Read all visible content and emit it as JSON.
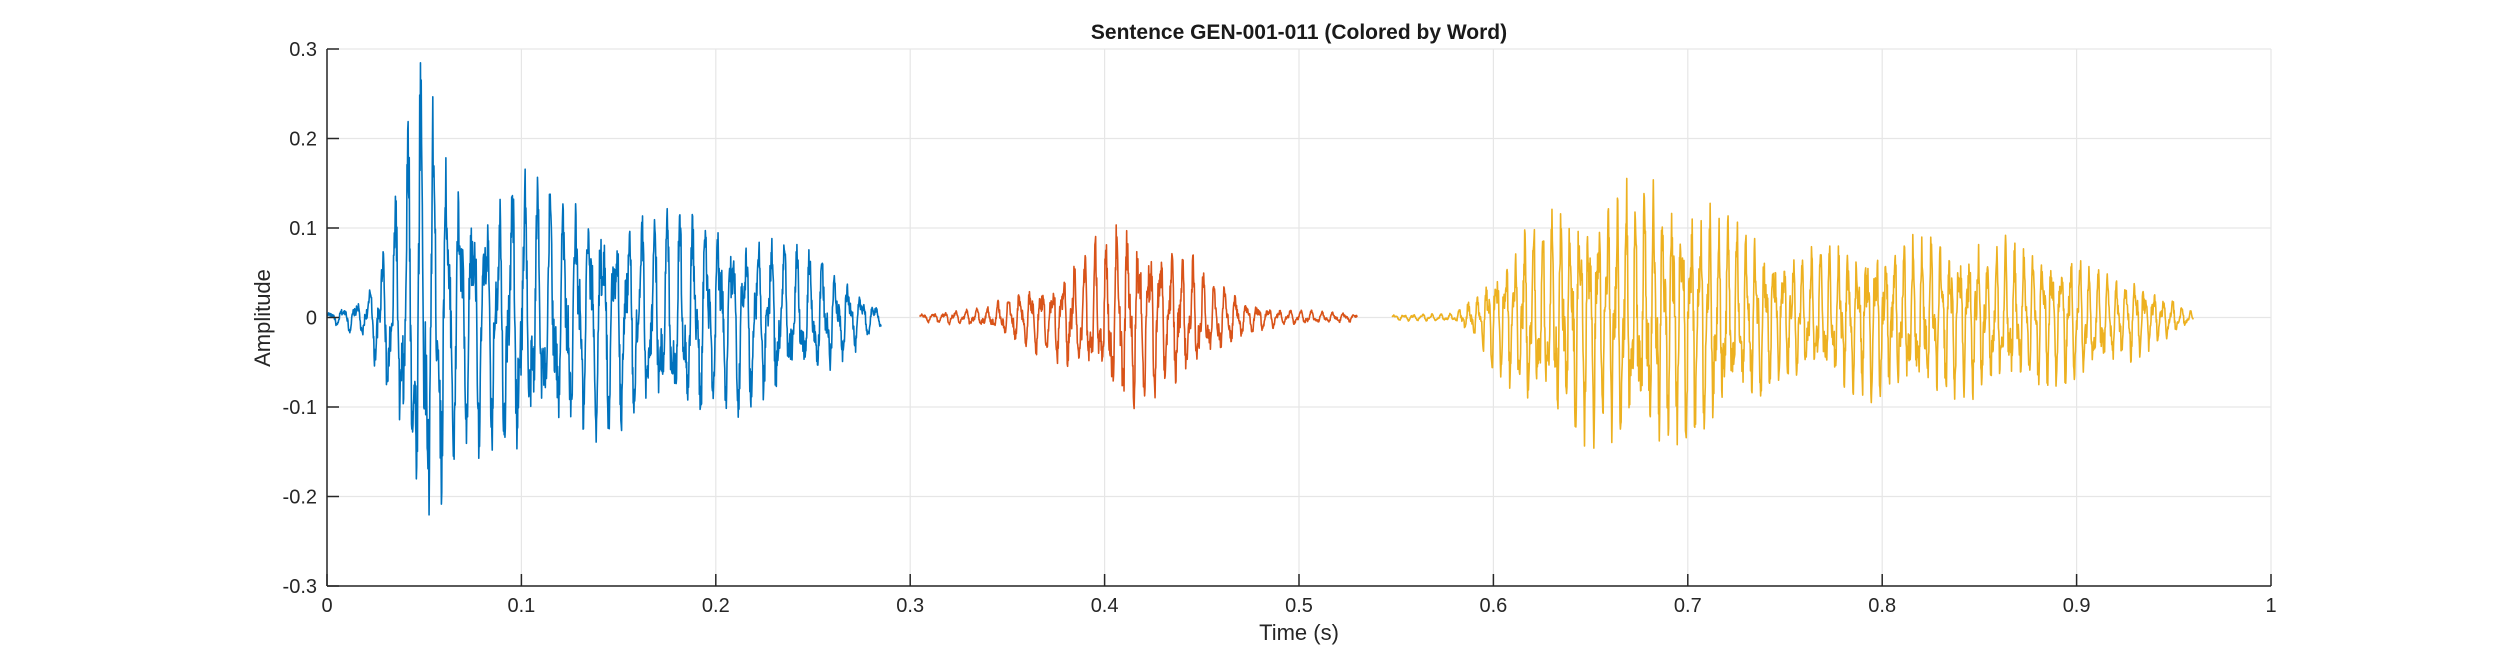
{
  "chart_data": {
    "type": "line",
    "title": "Sentence GEN-001-011 (Colored by Word)",
    "xlabel": "Time (s)",
    "ylabel": "Amplitude",
    "xlim": [
      0,
      1
    ],
    "ylim": [
      -0.3,
      0.3
    ],
    "xticks": [
      0,
      0.1,
      0.2,
      0.3,
      0.4,
      0.5,
      0.6,
      0.7,
      0.8,
      0.9,
      1
    ],
    "xtick_labels": [
      "0",
      "0.1",
      "0.2",
      "0.3",
      "0.4",
      "0.5",
      "0.6",
      "0.7",
      "0.8",
      "0.9",
      "1"
    ],
    "yticks": [
      0.3,
      0.2,
      0.1,
      0,
      -0.1,
      -0.2,
      -0.3
    ],
    "ytick_labels": [
      "0.3",
      "0.2",
      "0.1",
      "0",
      "-0.1",
      "-0.2",
      "-0.3"
    ],
    "grid": true,
    "legend": "none",
    "series": [
      {
        "color": "#0072BD",
        "x_range": [
          0,
          0.285
        ],
        "envelope": [
          [
            0,
            0.005
          ],
          [
            0.02,
            0.02
          ],
          [
            0.03,
            0.08
          ],
          [
            0.04,
            0.16
          ],
          [
            0.05,
            0.26
          ],
          [
            0.055,
            0.2
          ],
          [
            0.065,
            0.15
          ],
          [
            0.08,
            0.12
          ],
          [
            0.1,
            0.14
          ],
          [
            0.12,
            0.12
          ],
          [
            0.16,
            0.1
          ],
          [
            0.2,
            0.1
          ],
          [
            0.23,
            0.08
          ],
          [
            0.26,
            0.05
          ],
          [
            0.285,
            0.01
          ]
        ]
      },
      {
        "color": "#D95319",
        "x_range": [
          0.305,
          0.53
        ],
        "envelope": [
          [
            0.305,
            0.004
          ],
          [
            0.34,
            0.01
          ],
          [
            0.36,
            0.03
          ],
          [
            0.38,
            0.045
          ],
          [
            0.4,
            0.08
          ],
          [
            0.41,
            0.09
          ],
          [
            0.43,
            0.075
          ],
          [
            0.45,
            0.05
          ],
          [
            0.47,
            0.02
          ],
          [
            0.49,
            0.008
          ],
          [
            0.53,
            0.004
          ]
        ]
      },
      {
        "color": "#EDB120",
        "x_range": [
          0.548,
          0.96
        ],
        "envelope": [
          [
            0.548,
            0.003
          ],
          [
            0.58,
            0.004
          ],
          [
            0.59,
            0.02
          ],
          [
            0.6,
            0.05
          ],
          [
            0.62,
            0.09
          ],
          [
            0.64,
            0.11
          ],
          [
            0.67,
            0.13
          ],
          [
            0.7,
            0.12
          ],
          [
            0.72,
            0.1
          ],
          [
            0.75,
            0.06
          ],
          [
            0.8,
            0.075
          ],
          [
            0.85,
            0.075
          ],
          [
            0.9,
            0.06
          ],
          [
            0.93,
            0.04
          ],
          [
            0.96,
            0.005
          ]
        ]
      }
    ]
  }
}
